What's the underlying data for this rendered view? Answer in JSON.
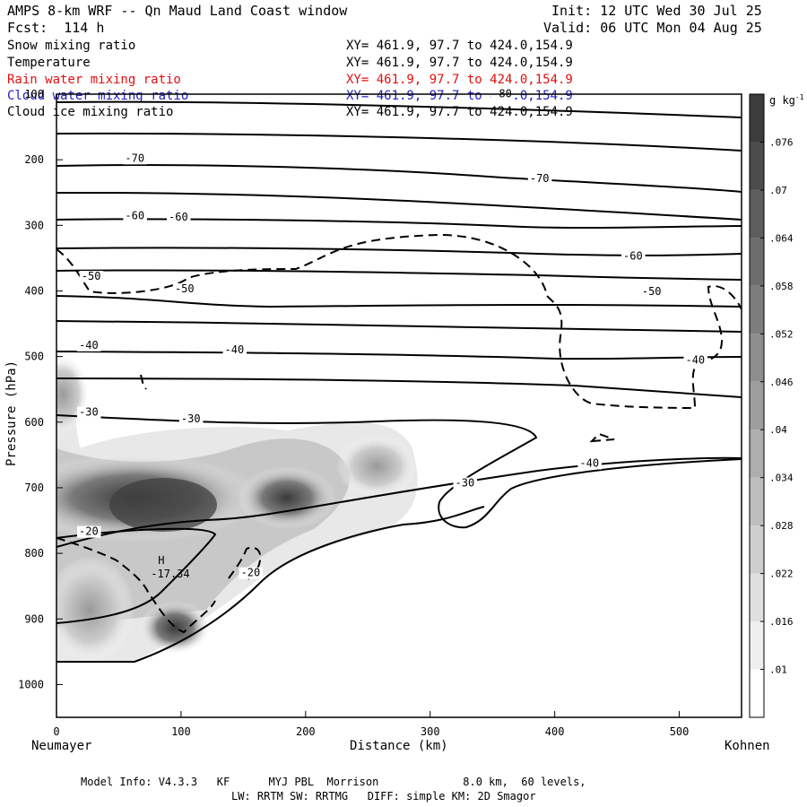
{
  "header": {
    "title": "AMPS 8-km WRF -- Qn Maud Land Coast window",
    "forecast": "Fcst:  114 h",
    "init": "Init: 12 UTC Wed 30 Jul 25",
    "valid": "Valid: 06 UTC Mon 04 Aug 25"
  },
  "fields": [
    {
      "name": "Snow mixing ratio",
      "xy": "XY= 461.9, 97.7 to 424.0,154.9",
      "color": "#000000"
    },
    {
      "name": "Temperature",
      "xy": "XY= 461.9, 97.7 to 424.0,154.9",
      "color": "#000000"
    },
    {
      "name": "Rain water mixing ratio",
      "xy": "XY= 461.9, 97.7 to 424.0,154.9",
      "color": "#e01010"
    },
    {
      "name": "Cloud water mixing ratio",
      "xy": "XY= 461.9, 97.7 to 424.0,154.9",
      "color": "#2020c0"
    },
    {
      "name": "Cloud ice mixing ratio",
      "xy": "XY= 461.9, 97.7 to 424.0,154.9",
      "color": "#000000"
    }
  ],
  "footer": {
    "line1": "Model Info: V4.3.3   KF      MYJ PBL  Morrison             8.0 km,  60 levels,",
    "line2": "LW: RRTM SW: RRTMG   DIFF: simple KM: 2D Smagor"
  },
  "chart_data": {
    "type": "heatmap",
    "title": "",
    "xlabel": "Distance (km)",
    "ylabel": "Pressure (hPa)",
    "xlim": [
      0,
      550
    ],
    "ylim": [
      1050,
      100
    ],
    "x_ticks": [
      0,
      100,
      200,
      300,
      400,
      500
    ],
    "y_ticks": [
      100,
      200,
      300,
      400,
      500,
      600,
      700,
      800,
      900,
      1000
    ],
    "x_endpoint_labels": {
      "left": "Neumayer",
      "right": "Kohnen"
    },
    "colorbar": {
      "unit": "g kg-1",
      "levels": [
        0.01,
        0.016,
        0.022,
        0.028,
        0.034,
        0.04,
        0.046,
        0.052,
        0.058,
        0.064,
        0.07,
        0.076
      ]
    },
    "max_marker": {
      "label": "H",
      "value": "-17.34",
      "x": 65,
      "p": 808
    },
    "temperature_labels": [
      {
        "text": "-80",
        "x": 350,
        "p": 105
      },
      {
        "text": "-70",
        "x": 55,
        "p": 203
      },
      {
        "text": "-70",
        "x": 380,
        "p": 234
      },
      {
        "text": "-60",
        "x": 55,
        "p": 291
      },
      {
        "text": "-60",
        "x": 90,
        "p": 293
      },
      {
        "text": "-60",
        "x": 455,
        "p": 352
      },
      {
        "text": "-50",
        "x": 20,
        "p": 383
      },
      {
        "text": "-50",
        "x": 95,
        "p": 402
      },
      {
        "text": "-50",
        "x": 470,
        "p": 406
      },
      {
        "text": "-40",
        "x": 18,
        "p": 488
      },
      {
        "text": "-40",
        "x": 135,
        "p": 495
      },
      {
        "text": "-40",
        "x": 505,
        "p": 511
      },
      {
        "text": "-40",
        "x": 420,
        "p": 668
      },
      {
        "text": "-30",
        "x": 18,
        "p": 590
      },
      {
        "text": "-30",
        "x": 100,
        "p": 600
      },
      {
        "text": "-30",
        "x": 320,
        "p": 698
      },
      {
        "text": "-20",
        "x": 18,
        "p": 772
      },
      {
        "text": "-20",
        "x": 148,
        "p": 835
      }
    ],
    "snow_maxima": [
      {
        "x": 80,
        "p": 725,
        "value": 0.07
      },
      {
        "x": 185,
        "p": 715,
        "value": 0.064
      },
      {
        "x": 100,
        "p": 920,
        "value": 0.07
      }
    ]
  }
}
